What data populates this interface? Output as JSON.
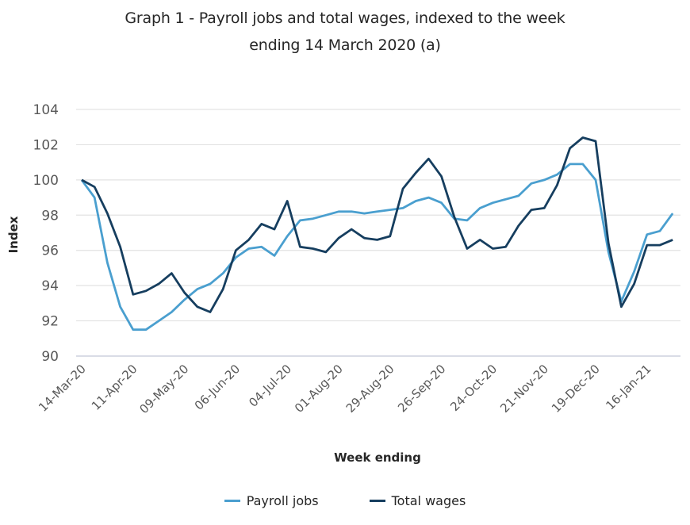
{
  "title": {
    "line1": "Graph 1 - Payroll jobs and total wages, indexed to the week",
    "line2": "ending 14 March 2020 (a)"
  },
  "legend": {
    "items": [
      {
        "label": "Payroll jobs",
        "color": "#4a9fcf"
      },
      {
        "label": "Total wages",
        "color": "#163e5f"
      }
    ]
  },
  "colors": {
    "payroll_jobs": "#4a9fcf",
    "total_wages": "#163e5f",
    "gridline": "#e3e3e3",
    "axis_line": "#d9dce6"
  },
  "chart_data": {
    "type": "line",
    "title": "Graph 1 - Payroll jobs and total wages, indexed to the week ending 14 March 2020 (a)",
    "xlabel": "Week ending",
    "ylabel": "Index",
    "ylim": [
      90,
      104
    ],
    "yticks": [
      90,
      92,
      94,
      96,
      98,
      100,
      102,
      104
    ],
    "grid": true,
    "legend_position": "bottom",
    "x_tick_labels": [
      "14-Mar-20",
      "11-Apr-20",
      "09-May-20",
      "06-Jun-20",
      "04-Jul-20",
      "01-Aug-20",
      "29-Aug-20",
      "26-Sep-20",
      "24-Oct-20",
      "21-Nov-20",
      "19-Dec-20",
      "16-Jan-21"
    ],
    "x_tick_every_n_weeks": 4,
    "x_week_index": [
      0,
      1,
      2,
      3,
      4,
      5,
      6,
      7,
      8,
      9,
      10,
      11,
      12,
      13,
      14,
      15,
      16,
      17,
      18,
      19,
      20,
      21,
      22,
      23,
      24,
      25,
      26,
      27,
      28,
      29,
      30,
      31,
      32,
      33,
      34,
      35,
      36,
      37,
      38,
      39,
      40,
      41,
      42,
      43,
      44,
      45,
      46
    ],
    "series": [
      {
        "name": "Payroll jobs",
        "color": "#4a9fcf",
        "values": [
          100.0,
          99.0,
          95.3,
          92.8,
          91.5,
          91.5,
          92.0,
          92.5,
          93.2,
          93.8,
          94.1,
          94.7,
          95.6,
          96.1,
          96.2,
          95.7,
          96.8,
          97.7,
          97.8,
          98.0,
          98.2,
          98.2,
          98.1,
          98.2,
          98.3,
          98.4,
          98.8,
          99.0,
          98.7,
          97.8,
          97.7,
          98.4,
          98.7,
          98.9,
          99.1,
          99.8,
          100.0,
          100.3,
          100.9,
          100.9,
          100.0,
          95.9,
          93.1,
          94.8,
          96.9,
          97.1,
          98.1
        ]
      },
      {
        "name": "Total wages",
        "color": "#163e5f",
        "values": [
          100.0,
          99.6,
          98.1,
          96.2,
          93.5,
          93.7,
          94.1,
          94.7,
          93.6,
          92.8,
          92.5,
          93.8,
          96.0,
          96.6,
          97.5,
          97.2,
          98.8,
          96.2,
          96.1,
          95.9,
          96.7,
          97.2,
          96.7,
          96.6,
          96.8,
          99.5,
          100.4,
          101.2,
          100.2,
          97.9,
          96.1,
          96.6,
          96.1,
          96.2,
          97.4,
          98.3,
          98.4,
          99.7,
          101.8,
          102.4,
          102.2,
          96.4,
          92.8,
          94.1,
          96.3,
          96.3,
          96.6
        ]
      }
    ]
  }
}
